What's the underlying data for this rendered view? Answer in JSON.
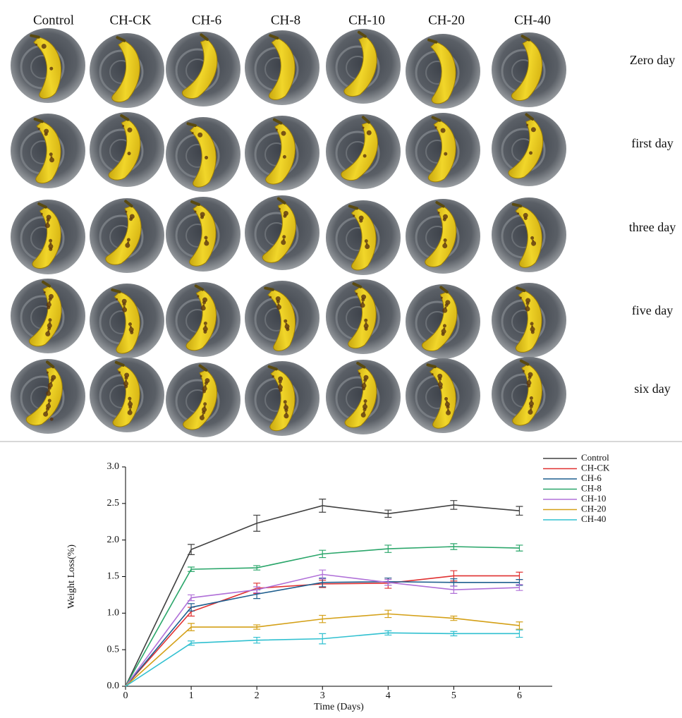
{
  "photo_grid": {
    "columns": [
      "Control",
      "CH-CK",
      "CH-6",
      "CH-8",
      "CH-10",
      "CH-20",
      "CH-40"
    ],
    "rows": [
      "Zero day",
      "first day",
      "three day",
      "five day",
      "six day"
    ]
  },
  "chart_data": {
    "type": "line",
    "xlabel": "Time (Days)",
    "ylabel": "Weight Loss(%)",
    "x": [
      0,
      1,
      2,
      3,
      4,
      5,
      6
    ],
    "series": [
      {
        "name": "Control",
        "color": "#404040",
        "values": [
          0,
          1.87,
          2.23,
          2.47,
          2.36,
          2.48,
          2.4
        ],
        "errors": [
          0,
          0.07,
          0.11,
          0.09,
          0.05,
          0.06,
          0.06
        ]
      },
      {
        "name": "CH-CK",
        "color": "#e03030",
        "values": [
          0,
          1.02,
          1.34,
          1.4,
          1.41,
          1.51,
          1.51
        ],
        "errors": [
          0,
          0.06,
          0.07,
          0.05,
          0.07,
          0.07,
          0.05
        ]
      },
      {
        "name": "CH-6",
        "color": "#1f5f8f",
        "values": [
          0,
          1.08,
          1.26,
          1.42,
          1.43,
          1.42,
          1.42
        ],
        "errors": [
          0,
          0.05,
          0.06,
          0.06,
          0.05,
          0.05,
          0.04
        ]
      },
      {
        "name": "CH-8",
        "color": "#2aa66a",
        "values": [
          0,
          1.6,
          1.62,
          1.81,
          1.88,
          1.91,
          1.89
        ],
        "errors": [
          0,
          0.03,
          0.03,
          0.05,
          0.05,
          0.04,
          0.04
        ]
      },
      {
        "name": "CH-10",
        "color": "#b070d8",
        "values": [
          0,
          1.21,
          1.32,
          1.53,
          1.42,
          1.32,
          1.35
        ],
        "errors": [
          0,
          0.04,
          0.04,
          0.06,
          0.04,
          0.05,
          0.04
        ]
      },
      {
        "name": "CH-20",
        "color": "#d4a017",
        "values": [
          0,
          0.81,
          0.81,
          0.92,
          0.99,
          0.93,
          0.83
        ],
        "errors": [
          0,
          0.05,
          0.03,
          0.05,
          0.05,
          0.03,
          0.05
        ]
      },
      {
        "name": "CH-40",
        "color": "#30c0d0",
        "values": [
          0,
          0.59,
          0.63,
          0.65,
          0.73,
          0.72,
          0.72
        ],
        "errors": [
          0,
          0.03,
          0.04,
          0.07,
          0.03,
          0.03,
          0.05
        ]
      }
    ],
    "xlim": [
      0,
      6.5
    ],
    "xticks": [
      0,
      1,
      2,
      3,
      4,
      5,
      6
    ],
    "ylim": [
      0,
      3
    ],
    "yticks": [
      {
        "value": 0,
        "label": "0.0"
      },
      {
        "value": 0.5,
        "label": "0.5"
      },
      {
        "value": 1,
        "label": "1.0"
      },
      {
        "value": 1.5,
        "label": "1.5"
      },
      {
        "value": 2,
        "label": "2.0"
      },
      {
        "value": 2.5,
        "label": "2.5"
      },
      {
        "value": 3,
        "label": "3.0"
      }
    ],
    "grid": false,
    "legend": "right"
  }
}
